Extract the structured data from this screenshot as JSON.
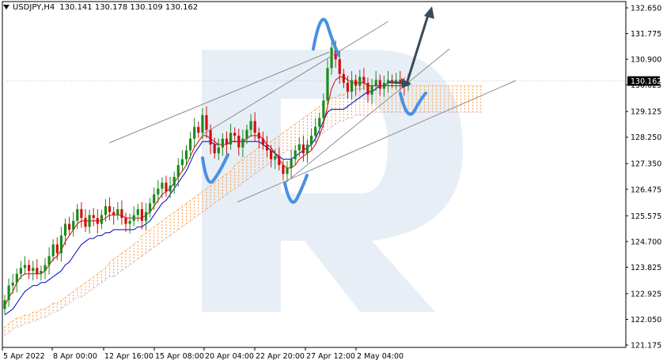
{
  "header": {
    "symbol": "USDJPY,H4",
    "ohlc": "130.141 130.178 130.109 130.162"
  },
  "colors": {
    "bull": "#1c8a1c",
    "bear": "#d01010",
    "tenkan": "#e00000",
    "kijun": "#0000c0",
    "cloud": "#ff9a3a",
    "trendline": "#8c8c8c",
    "wave": "#4a90e2",
    "arrow": "#3a4a5a",
    "price_tag_bg": "#000000"
  },
  "chart_data": {
    "type": "candlestick",
    "y_ticks": [
      "132.650",
      "131.775",
      "130.900",
      "130.025",
      "129.125",
      "128.250",
      "127.350",
      "126.475",
      "125.575",
      "124.700",
      "123.825",
      "122.925",
      "122.050",
      "121.175"
    ],
    "x_ticks": [
      "5 Apr 2022",
      "8 Apr 00:00",
      "12 Apr 16:00",
      "15 Apr 08:00",
      "20 Apr 04:00",
      "22 Apr 20:00",
      "27 Apr 12:00",
      "2 May 04:00"
    ],
    "ylim": [
      121.175,
      132.65
    ],
    "last_price": "130.162",
    "close": [
      122.7,
      123.2,
      123.3,
      123.6,
      123.8,
      123.9,
      123.7,
      123.8,
      123.6,
      123.7,
      123.9,
      124.2,
      124.6,
      124.3,
      124.9,
      125.3,
      125.1,
      125.4,
      125.8,
      125.5,
      125.2,
      125.6,
      125.5,
      125.3,
      125.6,
      125.9,
      125.7,
      125.6,
      125.8,
      125.5,
      125.3,
      125.4,
      125.6,
      125.8,
      125.4,
      125.7,
      126.0,
      126.3,
      126.5,
      126.7,
      126.4,
      126.6,
      126.9,
      127.3,
      127.5,
      127.8,
      128.2,
      128.6,
      128.4,
      129.0,
      128.5,
      128.0,
      127.7,
      127.9,
      128.2,
      128.0,
      128.4,
      128.3,
      127.9,
      128.2,
      128.5,
      128.8,
      128.4,
      128.2,
      128.0,
      127.8,
      127.5,
      127.6,
      127.3,
      127.0,
      127.2,
      127.5,
      127.8,
      128.0,
      127.7,
      128.0,
      128.3,
      128.6,
      128.9,
      129.5,
      130.6,
      131.3,
      130.9,
      130.4,
      130.1,
      129.8,
      130.2,
      130.0,
      130.3,
      130.1,
      129.7,
      130.0,
      130.2,
      129.9,
      130.1,
      130.2,
      130.1,
      130.2,
      130.1,
      130.0,
      130.16
    ],
    "tenkan": [
      122.5,
      122.8,
      123.0,
      123.3,
      123.5,
      123.6,
      123.6,
      123.6,
      123.6,
      123.6,
      123.7,
      123.9,
      124.1,
      124.2,
      124.4,
      124.7,
      124.9,
      125.1,
      125.3,
      125.4,
      125.4,
      125.4,
      125.4,
      125.4,
      125.4,
      125.5,
      125.6,
      125.6,
      125.6,
      125.6,
      125.5,
      125.5,
      125.5,
      125.5,
      125.5,
      125.6,
      125.7,
      125.9,
      126.1,
      126.3,
      126.4,
      126.5,
      126.7,
      126.9,
      127.1,
      127.3,
      127.6,
      127.9,
      128.1,
      128.3,
      128.3,
      128.2,
      128.1,
      128.0,
      128.0,
      128.0,
      128.1,
      128.1,
      128.1,
      128.1,
      128.2,
      128.3,
      128.3,
      128.3,
      128.2,
      128.0,
      127.9,
      127.7,
      127.5,
      127.3,
      127.2,
      127.2,
      127.3,
      127.5,
      127.6,
      127.7,
      127.8,
      128.0,
      128.3,
      128.7,
      129.3,
      129.9,
      130.2,
      130.3,
      130.3,
      130.2,
      130.1,
      130.1,
      130.1,
      130.1,
      130.0,
      130.0,
      130.0,
      130.0,
      130.0,
      130.0,
      130.0,
      130.0,
      130.0,
      130.0,
      130.0
    ],
    "kijun": [
      122.2,
      122.3,
      122.4,
      122.6,
      122.8,
      123.0,
      123.1,
      123.2,
      123.2,
      123.3,
      123.3,
      123.4,
      123.5,
      123.6,
      123.7,
      123.9,
      124.0,
      124.2,
      124.4,
      124.6,
      124.7,
      124.8,
      124.8,
      124.9,
      124.9,
      125.0,
      125.0,
      125.1,
      125.1,
      125.1,
      125.1,
      125.1,
      125.1,
      125.2,
      125.2,
      125.3,
      125.4,
      125.6,
      125.8,
      126.0,
      126.1,
      126.3,
      126.5,
      126.7,
      126.9,
      127.1,
      127.4,
      127.7,
      127.9,
      128.1,
      128.1,
      128.1,
      128.0,
      128.0,
      128.0,
      128.0,
      128.1,
      128.1,
      128.1,
      128.1,
      128.1,
      128.1,
      128.1,
      128.1,
      128.0,
      127.9,
      127.8,
      127.7,
      127.6,
      127.5,
      127.5,
      127.5,
      127.6,
      127.7,
      127.8,
      127.9,
      128.0,
      128.2,
      128.5,
      128.8,
      129.1,
      129.2,
      129.2,
      129.2,
      129.2,
      129.3,
      129.4,
      129.5,
      129.6,
      129.7,
      129.8,
      129.8,
      129.9,
      130.0,
      130.0,
      130.1,
      130.1,
      130.1,
      130.1,
      130.1,
      130.1
    ],
    "cloud_top": [
      121.8,
      121.9,
      122.0,
      122.1,
      122.1,
      122.2,
      122.2,
      122.3,
      122.3,
      122.4,
      122.4,
      122.5,
      122.6,
      122.6,
      122.7,
      122.8,
      122.9,
      123.0,
      123.1,
      123.2,
      123.3,
      123.4,
      123.5,
      123.6,
      123.7,
      123.8,
      124.0,
      124.1,
      124.2,
      124.3,
      124.4,
      124.5,
      124.6,
      124.7,
      124.9,
      125.0,
      125.1,
      125.2,
      125.3,
      125.4,
      125.5,
      125.6,
      125.7,
      125.8,
      125.9,
      126.0,
      126.1,
      126.2,
      126.3,
      126.4,
      126.5,
      126.6,
      126.7,
      126.8,
      126.9,
      127.0,
      127.1,
      127.3,
      127.4,
      127.5,
      127.6,
      127.7,
      127.8,
      127.9,
      128.0,
      128.1,
      128.1,
      128.2,
      128.3,
      128.4,
      128.5,
      128.6,
      128.7,
      128.8,
      128.9,
      129.0,
      129.1,
      129.2,
      129.3,
      129.4,
      129.5,
      129.6,
      129.6,
      129.7,
      129.7,
      129.8,
      129.8,
      129.9,
      129.9,
      129.9,
      130.0,
      130.0,
      130.0,
      130.0,
      130.0,
      130.0,
      130.0,
      130.0,
      130.0,
      130.0,
      130.0,
      130.0,
      130.0,
      130.0,
      130.0,
      130.0,
      130.0,
      130.0,
      130.0,
      130.0,
      130.0,
      130.0,
      130.0,
      130.0,
      130.0,
      130.0,
      130.0,
      130.0,
      130.0,
      130.0,
      130.0,
      130.0,
      130.0
    ],
    "cloud_bottom": [
      121.5,
      121.6,
      121.7,
      121.8,
      121.8,
      121.9,
      121.9,
      122.0,
      122.0,
      122.1,
      122.1,
      122.2,
      122.3,
      122.3,
      122.4,
      122.5,
      122.6,
      122.7,
      122.8,
      122.8,
      122.9,
      123.0,
      123.1,
      123.2,
      123.3,
      123.4,
      123.5,
      123.5,
      123.6,
      123.7,
      123.8,
      123.9,
      124.0,
      124.1,
      124.2,
      124.3,
      124.4,
      124.5,
      124.6,
      124.7,
      124.8,
      124.9,
      125.0,
      125.1,
      125.2,
      125.3,
      125.4,
      125.5,
      125.6,
      125.7,
      125.8,
      125.9,
      126.0,
      126.1,
      126.2,
      126.3,
      126.4,
      126.5,
      126.6,
      126.7,
      126.8,
      126.9,
      127.0,
      127.1,
      127.2,
      127.3,
      127.4,
      127.5,
      127.6,
      127.7,
      127.8,
      127.8,
      127.9,
      128.0,
      128.0,
      128.1,
      128.1,
      128.2,
      128.3,
      128.4,
      128.5,
      128.6,
      128.7,
      128.8,
      128.8,
      128.9,
      128.9,
      129.0,
      129.0,
      129.0,
      129.0,
      129.1,
      129.1,
      129.1,
      129.1,
      129.1,
      129.1,
      129.1,
      129.1,
      129.1,
      129.1,
      129.1,
      129.1,
      129.1,
      129.1,
      129.1,
      129.1,
      129.1,
      129.1,
      129.1,
      129.1,
      129.1,
      129.1,
      129.1,
      129.1,
      129.1,
      129.1,
      129.1,
      129.1,
      129.1,
      129.1,
      129.1,
      129.1
    ]
  }
}
